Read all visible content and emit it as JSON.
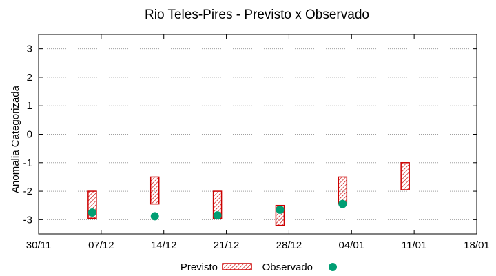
{
  "chart_data": {
    "type": "range-bar+scatter",
    "title": "Rio Teles-Pires - Previsto x Observado",
    "xlabel": "",
    "ylabel": "Anomalia Categorizada",
    "x_ticks": [
      "30/11",
      "07/12",
      "14/12",
      "21/12",
      "28/12",
      "04/01",
      "11/01",
      "18/01"
    ],
    "x_tick_dates": [
      "2019-11-30",
      "2019-12-07",
      "2019-12-14",
      "2019-12-21",
      "2019-12-28",
      "2020-01-04",
      "2020-01-11",
      "2020-01-18"
    ],
    "xlim": [
      "2019-11-30",
      "2020-01-18"
    ],
    "y_ticks": [
      3,
      2,
      1,
      0,
      -1,
      -2,
      -3
    ],
    "ylim": [
      -3.5,
      3.5
    ],
    "grid": "horizontal-dotted",
    "legend_position": "bottom",
    "series": [
      {
        "name": "Previsto",
        "style": "hatched-box",
        "color": "#cc0000",
        "points": [
          {
            "x": "2019-12-06",
            "low": -2.95,
            "high": -2.0
          },
          {
            "x": "2019-12-13",
            "low": -2.45,
            "high": -1.5
          },
          {
            "x": "2019-12-20",
            "low": -2.95,
            "high": -2.0
          },
          {
            "x": "2019-12-27",
            "low": -3.2,
            "high": -2.5
          },
          {
            "x": "2020-01-03",
            "low": -2.45,
            "high": -1.5
          },
          {
            "x": "2020-01-10",
            "low": -1.95,
            "high": -1.0
          }
        ]
      },
      {
        "name": "Observado",
        "style": "dot",
        "color": "#009e73",
        "points": [
          {
            "x": "2019-12-06",
            "y": -2.75
          },
          {
            "x": "2019-12-13",
            "y": -2.88
          },
          {
            "x": "2019-12-20",
            "y": -2.85
          },
          {
            "x": "2019-12-27",
            "y": -2.65
          },
          {
            "x": "2020-01-03",
            "y": -2.45
          }
        ]
      }
    ]
  }
}
